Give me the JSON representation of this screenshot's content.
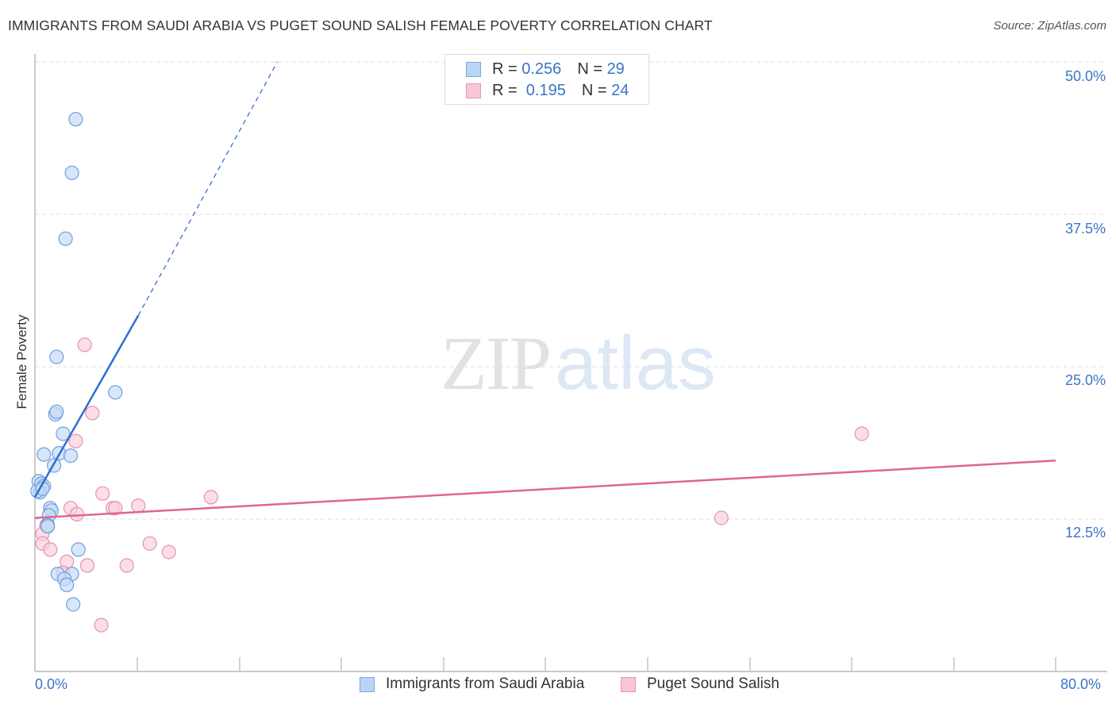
{
  "header": {
    "title": "IMMIGRANTS FROM SAUDI ARABIA VS PUGET SOUND SALISH FEMALE POVERTY CORRELATION CHART",
    "source": "Source: ZipAtlas.com"
  },
  "watermark": {
    "zip": "ZIP",
    "atlas": "atlas"
  },
  "legend": {
    "rows": [
      {
        "r_label": "R = ",
        "r_value": "0.256",
        "n_label": "N = ",
        "n_value": "29",
        "color": "#b9d4f5",
        "border": "#7ba7e0"
      },
      {
        "r_label": "R = ",
        "r_value": " 0.195",
        "n_label": "N = ",
        "n_value": "24",
        "color": "#f9c6d6",
        "border": "#ea95b0"
      }
    ]
  },
  "axes": {
    "y_label": "Female Poverty",
    "y_ticks": [
      "50.0%",
      "37.5%",
      "25.0%",
      "12.5%"
    ],
    "x_ticks": [
      "0.0%",
      "80.0%"
    ]
  },
  "bottom_legend": [
    {
      "label": "Immigrants from Saudi Arabia",
      "color": "#b9d4f5",
      "border": "#7ba7e0"
    },
    {
      "label": "Puget Sound Salish",
      "color": "#f9c6d6",
      "border": "#ea95b0"
    }
  ],
  "colors": {
    "blue_fill": "#c6dbf5",
    "blue_stroke": "#6f9fe0",
    "blue_line": "#2f6fcf",
    "pink_fill": "#f9d0dd",
    "pink_stroke": "#e892ae",
    "pink_line": "#e0668f",
    "tick_label": "#3a75c4"
  },
  "chart_data": {
    "type": "scatter",
    "title": "IMMIGRANTS FROM SAUDI ARABIA VS PUGET SOUND SALISH FEMALE POVERTY CORRELATION CHART",
    "xlabel": "",
    "ylabel": "Female Poverty",
    "xlim": [
      0,
      80
    ],
    "ylim": [
      0,
      50
    ],
    "x_unit": "%",
    "y_unit": "%",
    "y_tick_values": [
      12.5,
      25.0,
      37.5,
      50.0
    ],
    "x_tick_labels": [
      "0.0%",
      "80.0%"
    ],
    "grid": true,
    "legend_position": "top-center and bottom",
    "series": [
      {
        "name": "Immigrants from Saudi Arabia",
        "R": 0.256,
        "N": 29,
        "points": [
          [
            3.2,
            45.3
          ],
          [
            2.9,
            40.9
          ],
          [
            2.4,
            35.5
          ],
          [
            1.7,
            25.8
          ],
          [
            6.3,
            22.9
          ],
          [
            1.6,
            21.1
          ],
          [
            1.7,
            21.3
          ],
          [
            2.2,
            19.5
          ],
          [
            0.7,
            17.8
          ],
          [
            1.9,
            17.9
          ],
          [
            2.8,
            17.7
          ],
          [
            1.5,
            16.9
          ],
          [
            0.3,
            15.6
          ],
          [
            0.5,
            15.4
          ],
          [
            0.7,
            15.2
          ],
          [
            0.4,
            14.7
          ],
          [
            0.2,
            14.8
          ],
          [
            1.2,
            13.4
          ],
          [
            1.3,
            13.2
          ],
          [
            1.1,
            12.8
          ],
          [
            1.0,
            12.0
          ],
          [
            1.0,
            11.9
          ],
          [
            3.4,
            10.0
          ],
          [
            1.8,
            8.0
          ],
          [
            2.9,
            8.0
          ],
          [
            2.3,
            7.6
          ],
          [
            2.5,
            7.1
          ],
          [
            3.0,
            5.5
          ],
          [
            0.6,
            15.0
          ]
        ],
        "trendline": {
          "x0": 0,
          "y0": 14.3,
          "x1": 8.1,
          "y1": 29.2,
          "dashed_extension_to": [
            19.0,
            50.0
          ]
        }
      },
      {
        "name": "Puget Sound Salish",
        "R": 0.195,
        "N": 24,
        "points": [
          [
            3.9,
            26.8
          ],
          [
            4.5,
            21.2
          ],
          [
            3.2,
            18.9
          ],
          [
            64.8,
            19.5
          ],
          [
            5.3,
            14.6
          ],
          [
            13.8,
            14.3
          ],
          [
            8.1,
            13.6
          ],
          [
            6.1,
            13.4
          ],
          [
            6.3,
            13.4
          ],
          [
            2.8,
            13.4
          ],
          [
            3.3,
            12.9
          ],
          [
            53.8,
            12.6
          ],
          [
            0.5,
            15.2
          ],
          [
            0.6,
            11.3
          ],
          [
            0.9,
            12.0
          ],
          [
            0.6,
            10.5
          ],
          [
            1.2,
            10.0
          ],
          [
            9.0,
            10.5
          ],
          [
            10.5,
            9.8
          ],
          [
            2.5,
            9.0
          ],
          [
            4.1,
            8.7
          ],
          [
            7.2,
            8.7
          ],
          [
            2.2,
            8.1
          ],
          [
            5.2,
            3.8
          ]
        ],
        "trendline": {
          "x0": 0,
          "y0": 12.6,
          "x1": 80,
          "y1": 17.3
        }
      }
    ]
  }
}
